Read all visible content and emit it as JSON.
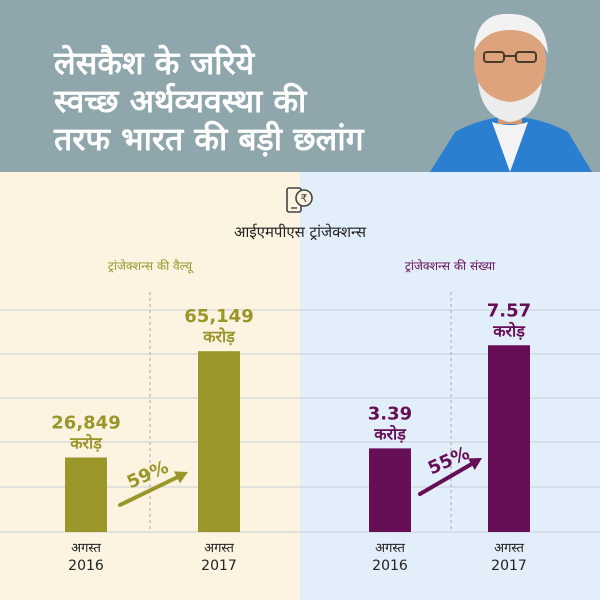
{
  "header": {
    "title_lines": [
      "लेसकैश के जरिये",
      "स्वच्छ अर्थव्यवस्था की",
      "तरफ भारत की बड़ी छलांग"
    ]
  },
  "main_title": "आईएमपीएस ट्रांजेक्शन्स",
  "colors": {
    "header_bg": "#8fa6ac",
    "left_panel_bg": "#fcf3e1",
    "right_panel_bg": "#e3eefb",
    "olive": "#9b962a",
    "purple": "#660f57"
  },
  "chart_data": [
    {
      "type": "bar",
      "title": "ट्रांजेक्शन्स की वैल्यू",
      "categories": [
        [
          "अगस्त",
          "2016"
        ],
        [
          "अगस्त",
          "2017"
        ]
      ],
      "values": [
        26849,
        65149
      ],
      "value_labels": [
        [
          "26,849",
          "करोड़"
        ],
        [
          "65,149",
          "करोड़"
        ]
      ],
      "growth_label": "59%",
      "ylim": [
        0,
        80000
      ],
      "color": "#9b962a",
      "grid": true
    },
    {
      "type": "bar",
      "title": "ट्रांजेक्शन्स की संख्या",
      "categories": [
        [
          "अगस्त",
          "2016"
        ],
        [
          "अगस्त",
          "2017"
        ]
      ],
      "values": [
        3.39,
        7.57
      ],
      "value_labels": [
        [
          "3.39",
          "करोड़"
        ],
        [
          "7.57",
          "करोड़"
        ]
      ],
      "growth_label": "55%",
      "ylim": [
        0,
        9.0
      ],
      "color": "#660f57",
      "grid": true
    }
  ]
}
